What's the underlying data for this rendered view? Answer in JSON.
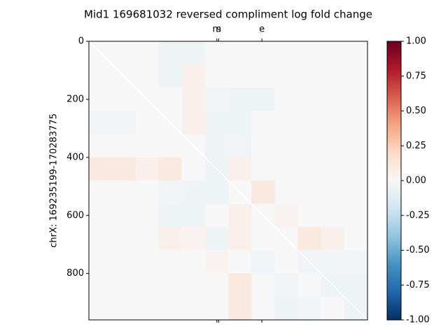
{
  "chart_data": {
    "type": "heatmap",
    "title": "Mid1 169681032 reversed compliment log fold change",
    "y_label": "chrX: 169235199-170283775",
    "xlim": [
      0,
      960
    ],
    "ylim": [
      0,
      960
    ],
    "yticks": [
      0,
      200,
      400,
      600,
      800
    ],
    "xticks": [
      {
        "value": 441,
        "label": "m"
      },
      {
        "value": 447,
        "label": "s"
      },
      {
        "value": 596,
        "label": "e"
      }
    ],
    "colormap": "RdBu_r",
    "zlim": [
      -1,
      1
    ],
    "zticks": [
      {
        "value": -1,
        "label": "-1.00"
      },
      {
        "value": -0.75,
        "label": "-0.75"
      },
      {
        "value": -0.5,
        "label": "-0.50"
      },
      {
        "value": -0.25,
        "label": "-0.25"
      },
      {
        "value": 0,
        "label": "0.00"
      },
      {
        "value": 0.25,
        "label": "0.25"
      },
      {
        "value": 0.5,
        "label": "0.50"
      },
      {
        "value": 0.75,
        "label": "0.75"
      },
      {
        "value": 1,
        "label": "1.00"
      }
    ],
    "z": [
      [
        0,
        0,
        0,
        -0.05,
        -0.05,
        0,
        0,
        0,
        0,
        0,
        0,
        0
      ],
      [
        0,
        0,
        0,
        -0.05,
        0.05,
        0,
        0,
        0,
        0,
        0,
        0,
        0
      ],
      [
        0,
        0,
        0,
        0,
        0.05,
        -0.03,
        -0.05,
        -0.05,
        0,
        0,
        0,
        0
      ],
      [
        -0.03,
        -0.03,
        0,
        0,
        0.05,
        -0.05,
        -0.05,
        0,
        0,
        0,
        0,
        0
      ],
      [
        0,
        0,
        0,
        0,
        0,
        -0.05,
        -0.03,
        0,
        0,
        0,
        0,
        0
      ],
      [
        0.1,
        0.1,
        0.05,
        0.1,
        0,
        -0.05,
        0.05,
        0,
        0,
        0,
        0,
        0
      ],
      [
        0,
        0,
        0,
        -0.03,
        -0.05,
        -0.05,
        0,
        0.1,
        0,
        0,
        0,
        0
      ],
      [
        0,
        0,
        0,
        -0.05,
        -0.05,
        0,
        0.05,
        0,
        0.03,
        0,
        0,
        0
      ],
      [
        0,
        0,
        0,
        0.05,
        0.03,
        -0.05,
        0.05,
        0,
        0,
        0.1,
        0.05,
        0
      ],
      [
        0,
        0,
        0,
        0,
        0,
        0.03,
        0,
        -0.03,
        0,
        -0.03,
        -0.03,
        -0.03
      ],
      [
        0,
        0,
        0,
        0,
        0,
        0,
        0.1,
        0,
        -0.03,
        0,
        -0.05,
        -0.05
      ],
      [
        0,
        0,
        0,
        0,
        0,
        0,
        0.1,
        0,
        -0.05,
        -0.03,
        0,
        -0.05
      ]
    ]
  }
}
